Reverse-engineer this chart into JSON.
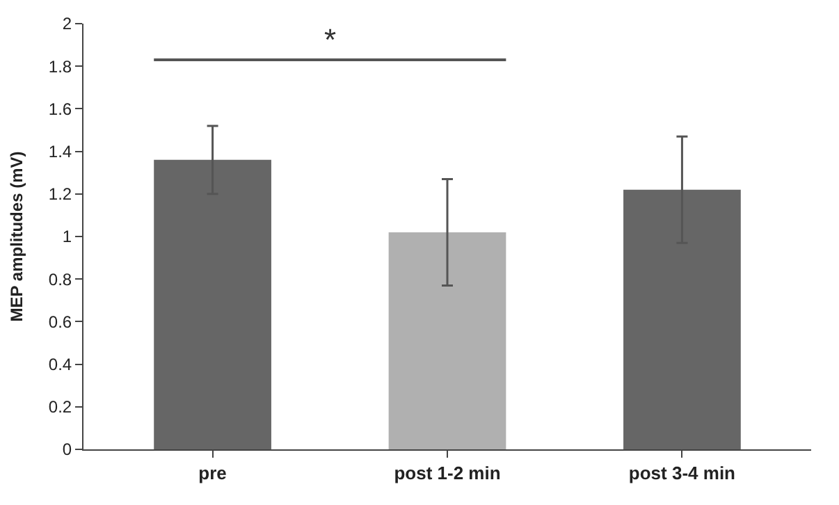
{
  "chart_data": {
    "type": "bar",
    "ylabel": "MEP amplitudes (mV)",
    "categories": [
      "pre",
      "post 1-2 min",
      "post 3-4 min"
    ],
    "values": [
      1.36,
      1.02,
      1.22
    ],
    "colors": [
      "#666666",
      "#b0b0b0",
      "#666666"
    ],
    "errors": [
      0.16,
      0.25,
      0.25
    ],
    "ylim": [
      0,
      2
    ],
    "yticks": [
      0,
      0.2,
      0.4,
      0.6,
      0.8,
      1,
      1.2,
      1.4,
      1.6,
      1.8,
      2
    ],
    "annotations": [
      "*"
    ]
  }
}
